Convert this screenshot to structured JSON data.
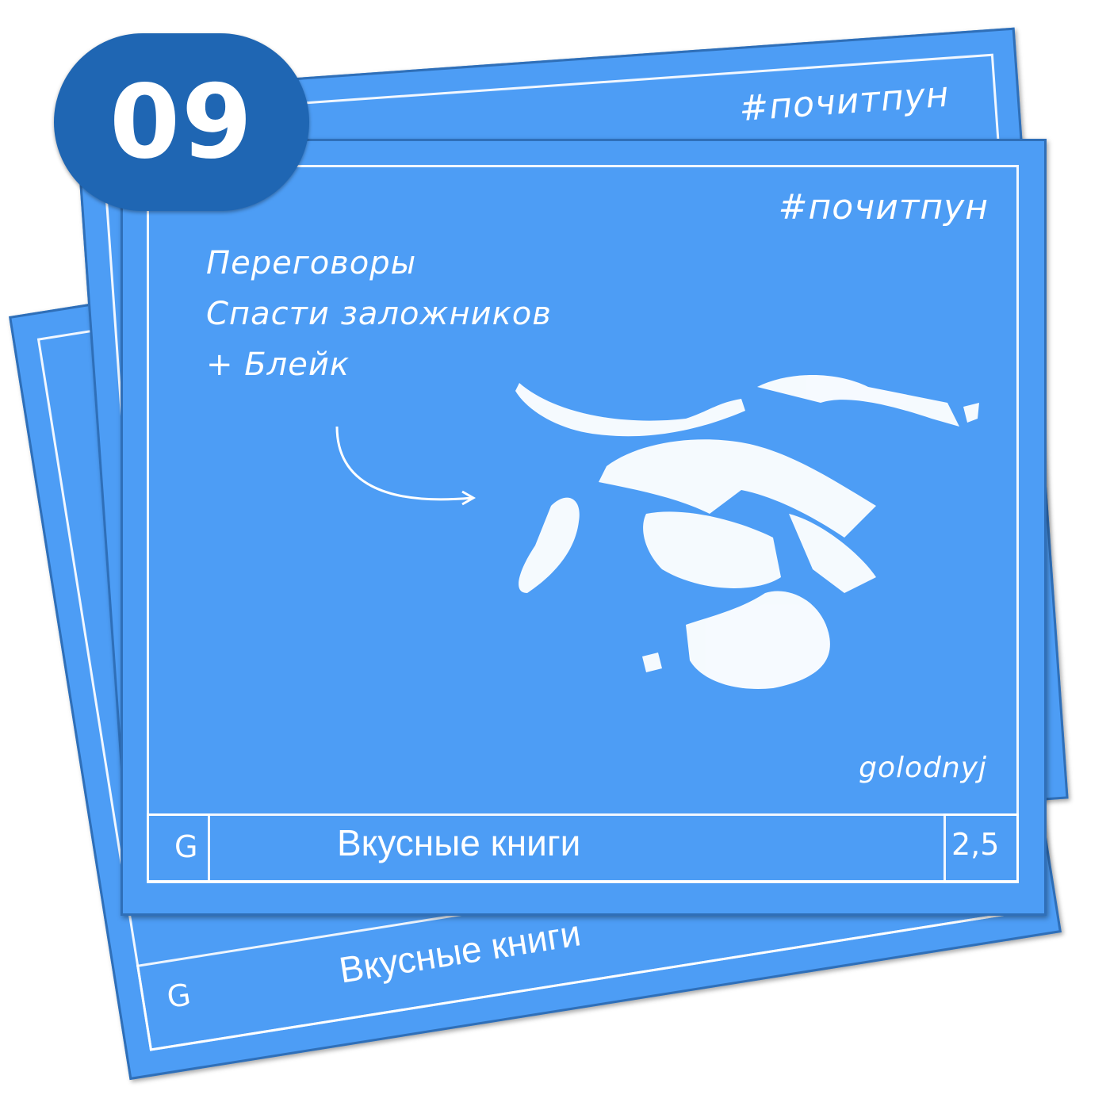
{
  "badge": {
    "number": "09"
  },
  "card": {
    "hashtag": "#почитпун",
    "lines": [
      "Переговоры",
      "Спасти заложников",
      "+ Блейк"
    ],
    "signature": "golodnyj",
    "footer": {
      "letter": "G",
      "title": "Вкусные книги",
      "number": "2,5"
    }
  },
  "back_card": {
    "hashtag": "#почитпун",
    "footer": {
      "letter": "G",
      "title": "Вкусные книги"
    }
  },
  "colors": {
    "card": "#4d9df5",
    "badge": "#1f66b3",
    "chalk": "#ffffff"
  },
  "illustration": {
    "icon": "sketched-figures-illustration",
    "arrow": "curved-arrow-icon"
  }
}
